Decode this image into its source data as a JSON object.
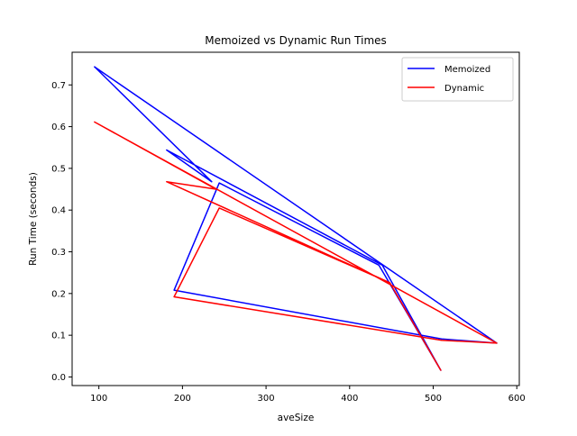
{
  "chart_data": {
    "type": "line",
    "title": "Memoized vs Dynamic Run Times",
    "xlabel": "aveSize",
    "ylabel": "Run Time (seconds)",
    "xlim": [
      68,
      603
    ],
    "ylim": [
      -0.0206,
      0.7783
    ],
    "xticks": [
      100,
      200,
      300,
      400,
      500,
      600
    ],
    "yticks": [
      0.0,
      0.1,
      0.2,
      0.3,
      0.4,
      0.5,
      0.6,
      0.7
    ],
    "grid": false,
    "legend_position": "top-right",
    "series": [
      {
        "name": "Memoized",
        "color": "#0000ff",
        "x": [
          95,
          235,
          181,
          439,
          509,
          435,
          244,
          190,
          510,
          576,
          95
        ],
        "y": [
          0.743,
          0.468,
          0.544,
          0.268,
          0.016,
          0.268,
          0.465,
          0.208,
          0.091,
          0.081,
          0.743
        ]
      },
      {
        "name": "Dynamic",
        "color": "#ff0000",
        "x": [
          95,
          240,
          181,
          448,
          509,
          448,
          244,
          190,
          510,
          576,
          95
        ],
        "y": [
          0.611,
          0.45,
          0.468,
          0.226,
          0.016,
          0.226,
          0.405,
          0.192,
          0.088,
          0.081,
          0.611
        ]
      }
    ]
  }
}
